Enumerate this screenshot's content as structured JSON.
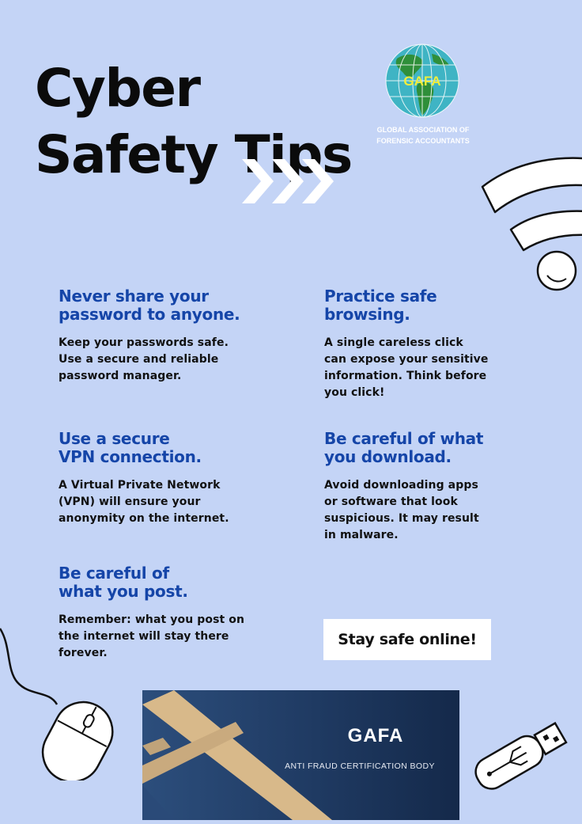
{
  "title": {
    "line1": "Cyber",
    "line2": "Safety Tips"
  },
  "logo": {
    "text": "GAFA",
    "org_name": "GLOBAL ASSOCIATION OF FORENSIC ACCOUNTANTS"
  },
  "tips": [
    {
      "heading": [
        "Never share your",
        "password to anyone."
      ],
      "body": [
        "Keep your passwords safe.",
        "Use a secure and reliable",
        "password manager."
      ]
    },
    {
      "heading": [
        "Practice safe",
        "browsing."
      ],
      "body": [
        "A single careless click",
        "can expose your sensitive",
        "information. Think before",
        "you click!"
      ]
    },
    {
      "heading": [
        "Use a secure",
        "VPN connection."
      ],
      "body": [
        "A Virtual Private Network",
        "(VPN) will ensure your",
        "anonymity on the internet."
      ]
    },
    {
      "heading": [
        "Be careful of what",
        "you download."
      ],
      "body": [
        "Avoid downloading apps",
        "or software that look",
        "suspicious. It may result",
        "in malware."
      ]
    },
    {
      "heading": [
        "Be careful of",
        "what you post."
      ],
      "body": [
        "Remember: what you post on",
        "the internet will stay there",
        "forever."
      ]
    }
  ],
  "cta": {
    "label": "Stay safe online!"
  },
  "banner": {
    "title": "GAFA",
    "subtitle": "ANTI FRAUD CERTIFICATION BODY"
  },
  "colors": {
    "background": "#c4d4f6",
    "heading": "#1545a8",
    "text": "#111111",
    "banner": "#1f3a62",
    "accent_gold": "#d8b98a"
  },
  "icons": [
    "globe-logo-icon",
    "chevron-arrows-icon",
    "wifi-icon",
    "computer-mouse-icon",
    "usb-drive-icon"
  ]
}
